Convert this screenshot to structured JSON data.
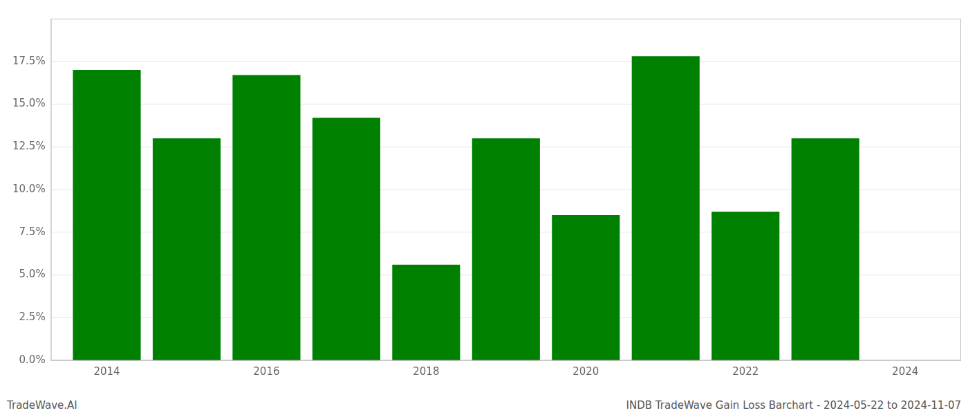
{
  "chart_data": {
    "type": "bar",
    "x": [
      2014,
      2015,
      2016,
      2017,
      2018,
      2019,
      2020,
      2021,
      2022,
      2023
    ],
    "values": [
      0.17,
      0.13,
      0.167,
      0.142,
      0.056,
      0.13,
      0.085,
      0.178,
      0.087,
      0.13
    ],
    "color": "#008000",
    "xlim": [
      2013.3,
      2024.7
    ],
    "xticks": [
      2014,
      2016,
      2018,
      2020,
      2022,
      2024
    ],
    "ylim": [
      0,
      0.2
    ],
    "yticks": [
      {
        "value": 0.0,
        "label": "0.0%"
      },
      {
        "value": 0.025,
        "label": "2.5%"
      },
      {
        "value": 0.05,
        "label": "5.0%"
      },
      {
        "value": 0.075,
        "label": "7.5%"
      },
      {
        "value": 0.1,
        "label": "10.0%"
      },
      {
        "value": 0.125,
        "label": "12.5%"
      },
      {
        "value": 0.15,
        "label": "15.0%"
      },
      {
        "value": 0.175,
        "label": "17.5%"
      }
    ],
    "grid": "y",
    "annotations": [
      "TradeWave.AI",
      "INDB TradeWave Gain Loss Barchart - 2024-05-22 to 2024-11-07"
    ]
  }
}
